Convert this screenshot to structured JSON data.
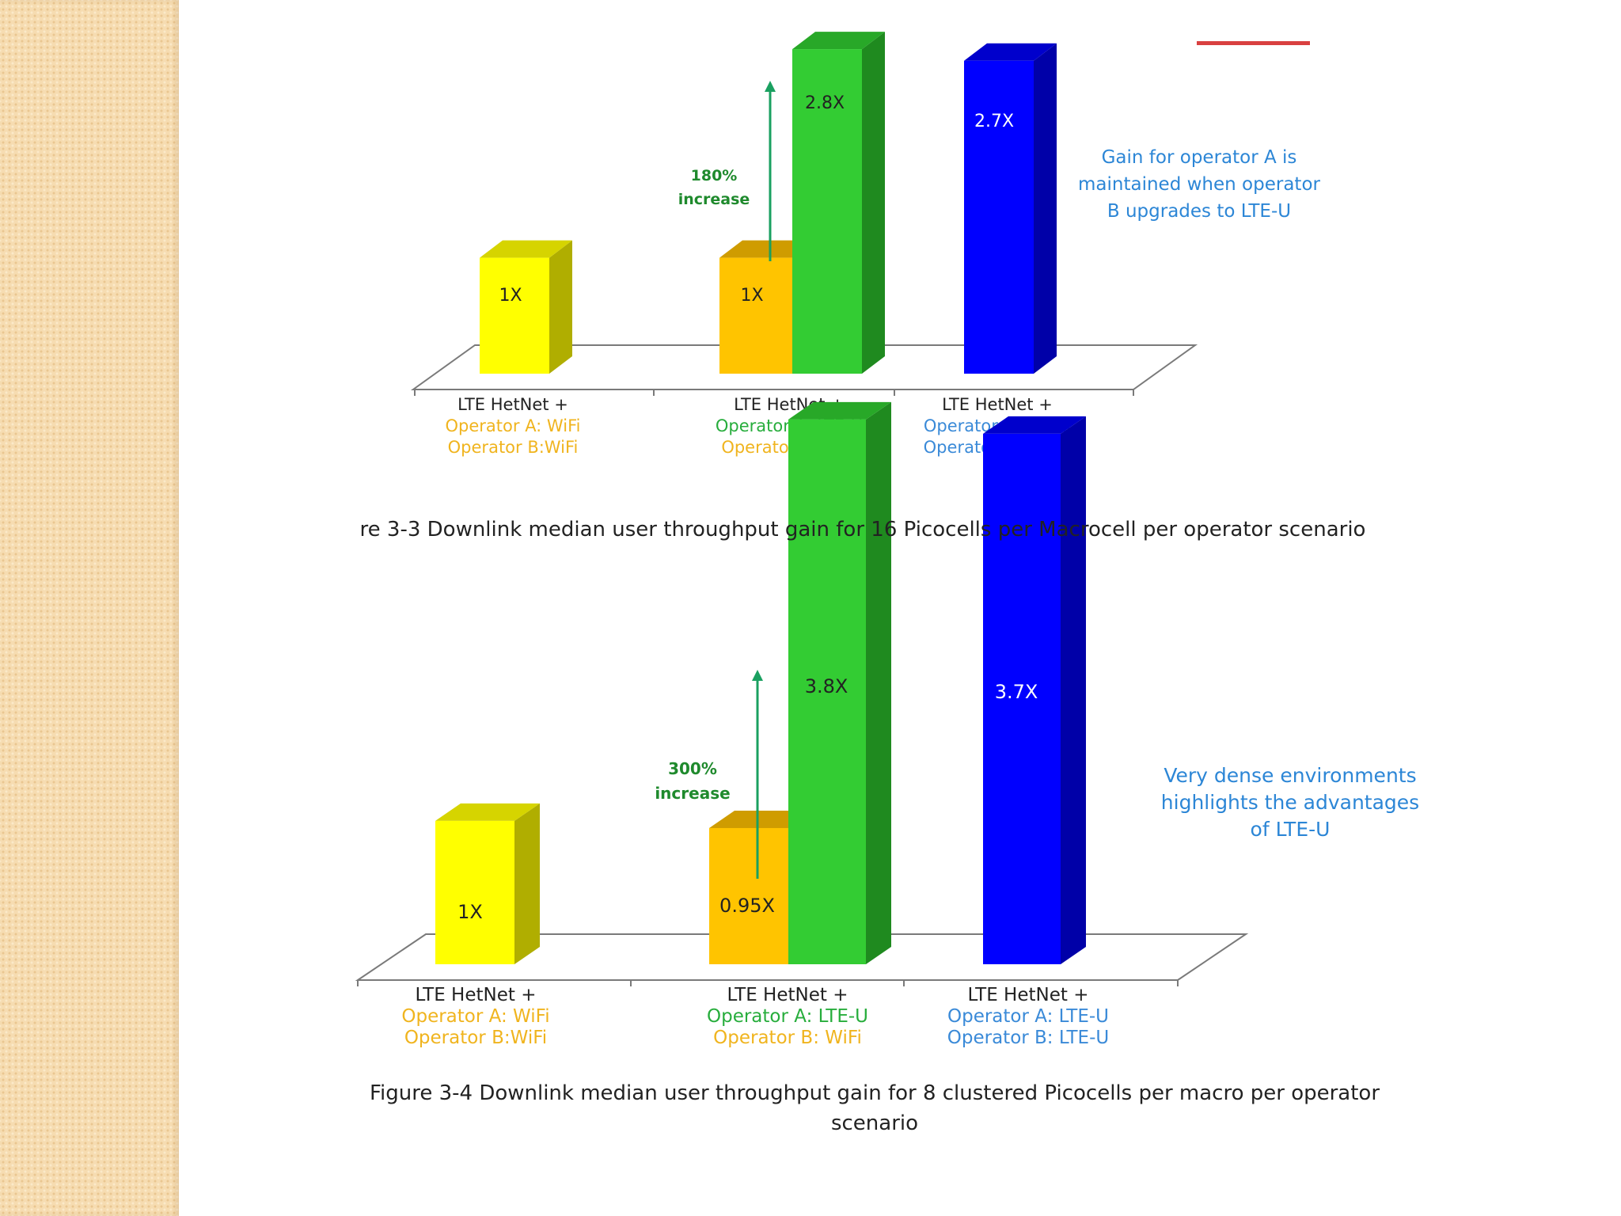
{
  "colors": {
    "wifi_text": "#f0b41e",
    "lteu_text": "#27ad3c",
    "lteu_both_text": "#3a8ad8",
    "annotation_blue": "#2c86d6",
    "increase_green": "#1f8a2d",
    "yellow_bar": "#ffff00",
    "orange_bar": "#ffc400",
    "green_bar": "#33cc33",
    "blue_bar": "#0000ff"
  },
  "chart_data": [
    {
      "type": "bar",
      "title": "",
      "caption": "re 3-3 Downlink  median user throughput  gain for 16 Picocells per Macrocell per operator scenario",
      "categories": [
        {
          "line1": "LTE HetNet +",
          "line2": "Operator A: WiFi",
          "line3": "Operator B:WiFi"
        },
        {
          "line1": "LTE HetNet +",
          "line2": "Operator A: LTE-U",
          "line3": "Operator B: WiFi"
        },
        {
          "line1": "LTE HetNet +",
          "line2": "Operator A: LTE-U",
          "line3": "Operator B: LTE-U"
        }
      ],
      "bars": [
        {
          "category": 0,
          "value": 1.0,
          "label": "1X",
          "color": "yellow"
        },
        {
          "category": 1,
          "value": 1.0,
          "label": "1X",
          "color": "orange"
        },
        {
          "category": 1,
          "value": 2.8,
          "label": "2.8X",
          "color": "green"
        },
        {
          "category": 2,
          "value": 2.7,
          "label": "2.7X",
          "color": "blue"
        }
      ],
      "increase_annotation": {
        "line1": "180%",
        "line2": "increase"
      },
      "side_note": [
        "Gain for operator A is",
        "maintained when operator",
        "B upgrades to LTE-U"
      ],
      "ylim": [
        0,
        3.0
      ]
    },
    {
      "type": "bar",
      "title": "",
      "caption": "Figure 3-4 Downlink median user throughput gain for 8 clustered Picocells per macro per operator scenario",
      "categories": [
        {
          "line1": "LTE HetNet +",
          "line2": "Operator A: WiFi",
          "line3": "Operator B:WiFi"
        },
        {
          "line1": "LTE HetNet +",
          "line2": "Operator A: LTE-U",
          "line3": "Operator B: WiFi"
        },
        {
          "line1": "LTE HetNet +",
          "line2": "Operator A: LTE-U",
          "line3": "Operator B: LTE-U"
        }
      ],
      "bars": [
        {
          "category": 0,
          "value": 1.0,
          "label": "1X",
          "color": "yellow"
        },
        {
          "category": 1,
          "value": 0.95,
          "label": "0.95X",
          "color": "orange"
        },
        {
          "category": 1,
          "value": 3.8,
          "label": "3.8X",
          "color": "green"
        },
        {
          "category": 2,
          "value": 3.7,
          "label": "3.7X",
          "color": "blue"
        }
      ],
      "increase_annotation": {
        "line1": "300%",
        "line2": "increase"
      },
      "side_note": [
        "Very dense environments",
        "highlights the advantages",
        "of LTE-U"
      ],
      "ylim": [
        0,
        4.0
      ]
    }
  ]
}
